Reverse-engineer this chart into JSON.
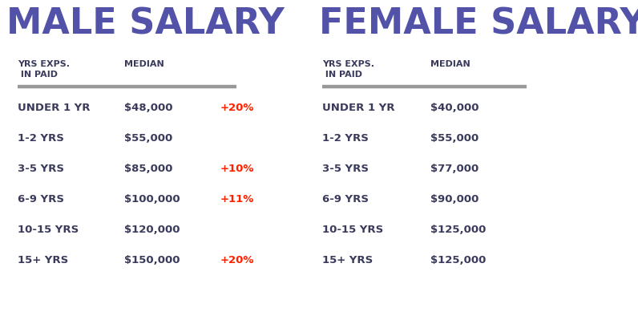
{
  "title_male": "MALE SALARY",
  "title_female": "FEMALE SALARY",
  "title_color": "#5252a8",
  "title_fontsize": 32,
  "background_color": "#ffffff",
  "text_color": "#3a3a5c",
  "red_color": "#ff2200",
  "line_color": "#999999",
  "male_rows": [
    {
      "exp": "UNDER 1 YR",
      "median": "$48,000",
      "change": "+20%"
    },
    {
      "exp": "1-2 YRS",
      "median": "$55,000",
      "change": ""
    },
    {
      "exp": "3-5 YRS",
      "median": "$85,000",
      "change": "+10%"
    },
    {
      "exp": "6-9 YRS",
      "median": "$100,000",
      "change": "+11%"
    },
    {
      "exp": "10-15 YRS",
      "median": "$120,000",
      "change": ""
    },
    {
      "exp": "15+ YRS",
      "median": "$150,000",
      "change": "+20%"
    }
  ],
  "female_rows": [
    {
      "exp": "UNDER 1 YR",
      "median": "$40,000",
      "change": ""
    },
    {
      "exp": "1-2 YRS",
      "median": "$55,000",
      "change": ""
    },
    {
      "exp": "3-5 YRS",
      "median": "$77,000",
      "change": ""
    },
    {
      "exp": "6-9 YRS",
      "median": "$90,000",
      "change": ""
    },
    {
      "exp": "10-15 YRS",
      "median": "$125,000",
      "change": ""
    },
    {
      "exp": "15+ YRS",
      "median": "$125,000",
      "change": ""
    }
  ],
  "fig_width": 7.96,
  "fig_height": 3.94,
  "dpi": 100
}
